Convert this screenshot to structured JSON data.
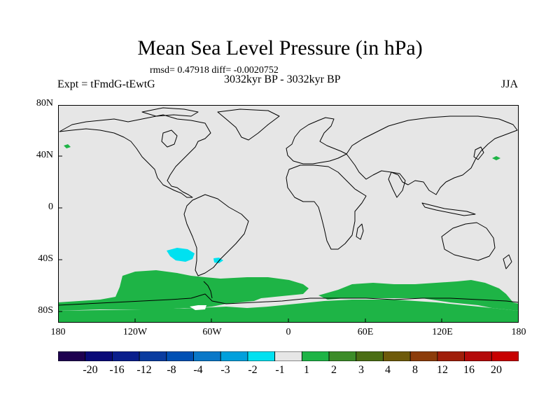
{
  "title": "Mean Sea Level Pressure (in hPa)",
  "stats": "rmsd= 0.47918 diff= -0.0020752",
  "period": "3032kyr BP - 3032kyr BP",
  "experiment": "Expt = tFmdG-tEwtG",
  "season": "JJA",
  "colors": {
    "background_field": "#e6e6e6",
    "positive_anomaly": "#1eb446",
    "negative_anomaly": "#00e1f0",
    "coastline": "#000000"
  },
  "axes": {
    "lat_labels": [
      "80N",
      "40N",
      "0",
      "40S",
      "80S"
    ],
    "lat_values": [
      80,
      40,
      0,
      -40,
      -80
    ],
    "lon_labels": [
      "180",
      "120W",
      "60W",
      "0",
      "60E",
      "120E",
      "180"
    ],
    "lon_values": [
      -180,
      -120,
      -60,
      0,
      60,
      120,
      180
    ]
  },
  "colorbar": {
    "labels": [
      "-20",
      "-16",
      "-12",
      "-8",
      "-4",
      "-3",
      "-2",
      "-1",
      "1",
      "2",
      "3",
      "4",
      "8",
      "12",
      "16",
      "20"
    ],
    "colors": [
      "#1e0050",
      "#0a0a78",
      "#0a1e8c",
      "#0a3ca0",
      "#0050b4",
      "#0a78c8",
      "#00a0dc",
      "#00e1f0",
      "#e6e6e6",
      "#1eb446",
      "#3c8c28",
      "#4b6e14",
      "#6e5a0a",
      "#8c3c0a",
      "#a01e0a",
      "#b40a0a",
      "#c80000"
    ]
  }
}
